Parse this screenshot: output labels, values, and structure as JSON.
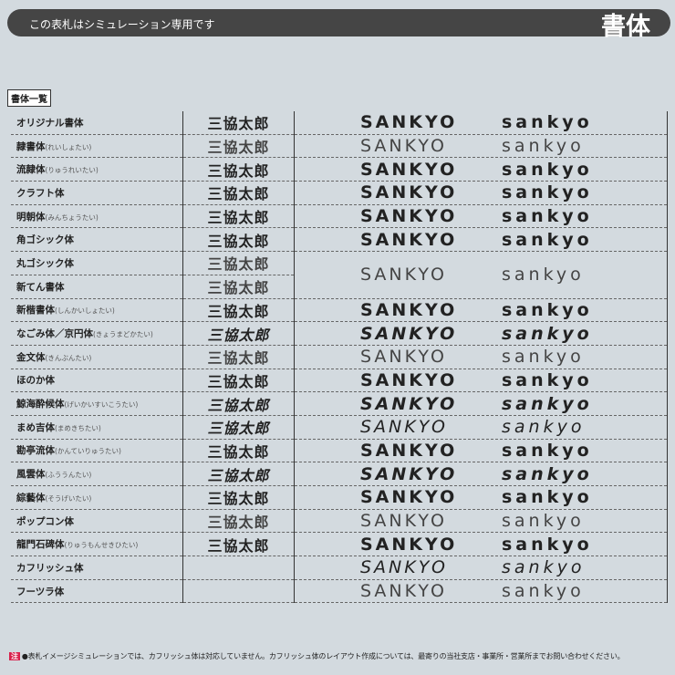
{
  "header": {
    "notice": "この表札はシミュレーション専用です",
    "title": "書体"
  },
  "caption": "書体一覧",
  "rows": [
    {
      "name": "オリジナル書体",
      "reading": "",
      "kanji": "三協太郎",
      "upper": "SANKYO",
      "lower": "sankyo",
      "style": "bold"
    },
    {
      "name": "隷書体",
      "reading": "(れいしょたい)",
      "kanji": "三協太郎",
      "upper": "SANKYO",
      "lower": "sankyo",
      "style": "light"
    },
    {
      "name": "流隷体",
      "reading": "(りゅうれいたい)",
      "kanji": "三協太郎",
      "upper": "SANKYO",
      "lower": "sankyo",
      "style": "bold"
    },
    {
      "name": "クラフト体",
      "reading": "",
      "kanji": "三協太郎",
      "upper": "SANKYO",
      "lower": "sankyo",
      "style": "bold"
    },
    {
      "name": "明朝体",
      "reading": "(みんちょうたい)",
      "kanji": "三協太郎",
      "upper": "SANKYO",
      "lower": "sankyo",
      "style": "bold"
    },
    {
      "name": "角ゴシック体",
      "reading": "",
      "kanji": "三協太郎",
      "upper": "SANKYO",
      "lower": "sankyo",
      "style": "bold"
    },
    {
      "name": "丸ゴシック体",
      "reading": "",
      "kanji": "三協太郎",
      "upper": "SANKYO",
      "lower": "sankyo",
      "style": "light",
      "span": 2
    },
    {
      "name": "新てん書体",
      "reading": "",
      "kanji": "三協太郎",
      "style": "light"
    },
    {
      "name": "新楷書体",
      "reading": "(しんかいしょたい)",
      "kanji": "三協太郎",
      "upper": "SANKYO",
      "lower": "sankyo",
      "style": "bold"
    },
    {
      "name": "なごみ体／京円体",
      "reading": "(きょうまどかたい)",
      "kanji": "三協太郎",
      "upper": "SANKYO",
      "lower": "sankyo",
      "style": "bold italic"
    },
    {
      "name": "金文体",
      "reading": "(きんぶんたい)",
      "kanji": "三協太郎",
      "upper": "SANKYO",
      "lower": "sankyo",
      "style": "light"
    },
    {
      "name": "ほのか体",
      "reading": "",
      "kanji": "三協太郎",
      "upper": "SANKYO",
      "lower": "sankyo",
      "style": "bold"
    },
    {
      "name": "鯨海酔候体",
      "reading": "(げいかいすいこうたい)",
      "kanji": "三協太郎",
      "upper": "SANKYO",
      "lower": "sankyo",
      "style": "bold italic"
    },
    {
      "name": "まめ吉体",
      "reading": "(まめきちたい)",
      "kanji": "三協太郎",
      "upper": "SANKYO",
      "lower": "sankyo",
      "style": "italic"
    },
    {
      "name": "勘亭流体",
      "reading": "(かんていりゅうたい)",
      "kanji": "三協太郎",
      "upper": "SANKYO",
      "lower": "sankyo",
      "style": "bold"
    },
    {
      "name": "風雲体",
      "reading": "(ふううんたい)",
      "kanji": "三協太郎",
      "upper": "SANKYO",
      "lower": "sankyo",
      "style": "bold italic"
    },
    {
      "name": "綜藝体",
      "reading": "(そうげいたい)",
      "kanji": "三協太郎",
      "upper": "SANKYO",
      "lower": "sankyo",
      "style": "bold"
    },
    {
      "name": "ポップコン体",
      "reading": "",
      "kanji": "三協太郎",
      "upper": "SANKYO",
      "lower": "sankyo",
      "style": "light"
    },
    {
      "name": "龍門石碑体",
      "reading": "(りゅうもんせきひたい)",
      "kanji": "三協太郎",
      "upper": "SANKYO",
      "lower": "sankyo",
      "style": "bold"
    },
    {
      "name": "カフリッシュ体",
      "reading": "",
      "kanji": "",
      "upper": "SANKYO",
      "lower": "sankyo",
      "style": "italic"
    },
    {
      "name": "フーツラ体",
      "reading": "",
      "kanji": "",
      "upper": "SANKYO",
      "lower": "sankyo",
      "style": "light"
    }
  ],
  "footnote": {
    "tag": "注",
    "text": "●表札イメージシミュレーションでは、カフリッシュ体は対応していません。カフリッシュ体のレイアウト作成については、最寄りの当社支店・事業所・営業所までお問い合わせください。"
  }
}
